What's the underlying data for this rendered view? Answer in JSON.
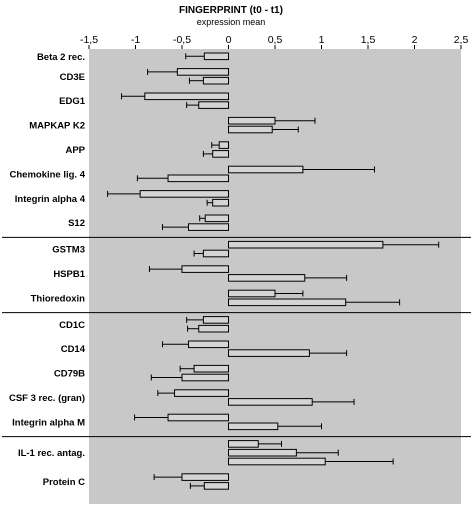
{
  "chart_data": {
    "type": "bar",
    "orientation": "horizontal",
    "title": "FINGERPRINT (t0 - t1)",
    "subtitle": "expression mean",
    "xlim": [
      -1.5,
      2.5
    ],
    "xticks": [
      "-1,5",
      "-1",
      "-0,5",
      "0",
      "0,5",
      "1",
      "1,5",
      "2",
      "2,5"
    ],
    "grid": false,
    "plot_background": "#c8c8c8",
    "bar_color": "#d4d4d4",
    "bar_edge_color": "#000000",
    "groups": [
      {
        "genes": [
          {
            "label": "Beta 2 rec.",
            "bars": [
              {
                "value": -0.26,
                "error": 0.2
              }
            ]
          },
          {
            "label": "CD3E",
            "bars": [
              {
                "value": -0.55,
                "error": 0.32
              },
              {
                "value": -0.27,
                "error": 0.15
              }
            ]
          },
          {
            "label": "EDG1",
            "bars": [
              {
                "value": -0.9,
                "error": 0.25
              },
              {
                "value": -0.32,
                "error": 0.13
              }
            ]
          },
          {
            "label": "MAPKAP K2",
            "bars": [
              {
                "value": 0.5,
                "error": 0.43
              },
              {
                "value": 0.47,
                "error": 0.28
              }
            ]
          },
          {
            "label": "APP",
            "bars": [
              {
                "value": -0.1,
                "error": 0.08
              },
              {
                "value": -0.17,
                "error": 0.1
              }
            ]
          },
          {
            "label": "Chemokine lig. 4",
            "bars": [
              {
                "value": 0.8,
                "error": 0.77
              },
              {
                "value": -0.65,
                "error": 0.33
              }
            ]
          },
          {
            "label": "Integrin alpha 4",
            "bars": [
              {
                "value": -0.95,
                "error": 0.35
              },
              {
                "value": -0.17,
                "error": 0.06
              }
            ]
          },
          {
            "label": "S12",
            "bars": [
              {
                "value": -0.25,
                "error": 0.06
              },
              {
                "value": -0.43,
                "error": 0.28
              }
            ]
          }
        ]
      },
      {
        "genes": [
          {
            "label": "GSTM3",
            "bars": [
              {
                "value": 1.66,
                "error": 0.6
              },
              {
                "value": -0.27,
                "error": 0.1
              }
            ]
          },
          {
            "label": "HSPB1",
            "bars": [
              {
                "value": -0.5,
                "error": 0.35
              },
              {
                "value": 0.82,
                "error": 0.45
              }
            ]
          },
          {
            "label": "Thioredoxin",
            "bars": [
              {
                "value": 0.5,
                "error": 0.3
              },
              {
                "value": 1.26,
                "error": 0.58
              }
            ]
          }
        ]
      },
      {
        "genes": [
          {
            "label": "CD1C",
            "bars": [
              {
                "value": -0.27,
                "error": 0.18
              },
              {
                "value": -0.32,
                "error": 0.12
              }
            ]
          },
          {
            "label": "CD14",
            "bars": [
              {
                "value": -0.43,
                "error": 0.28
              },
              {
                "value": 0.87,
                "error": 0.4
              }
            ]
          },
          {
            "label": "CD79B",
            "bars": [
              {
                "value": -0.37,
                "error": 0.15
              },
              {
                "value": -0.5,
                "error": 0.33
              }
            ]
          },
          {
            "label": "CSF 3 rec. (gran)",
            "bars": [
              {
                "value": -0.58,
                "error": 0.18
              },
              {
                "value": 0.9,
                "error": 0.45
              }
            ]
          },
          {
            "label": "Integrin alpha M",
            "bars": [
              {
                "value": -0.65,
                "error": 0.36
              },
              {
                "value": 0.53,
                "error": 0.47
              }
            ]
          }
        ]
      },
      {
        "genes": [
          {
            "label": "IL-1 rec. antag.",
            "bars": [
              {
                "value": 0.32,
                "error": 0.25
              },
              {
                "value": 0.73,
                "error": 0.45
              },
              {
                "value": 1.04,
                "error": 0.73
              }
            ]
          },
          {
            "label": "Protein C",
            "bars": [
              {
                "value": -0.5,
                "error": 0.3
              },
              {
                "value": -0.26,
                "error": 0.15
              }
            ]
          }
        ]
      }
    ]
  }
}
